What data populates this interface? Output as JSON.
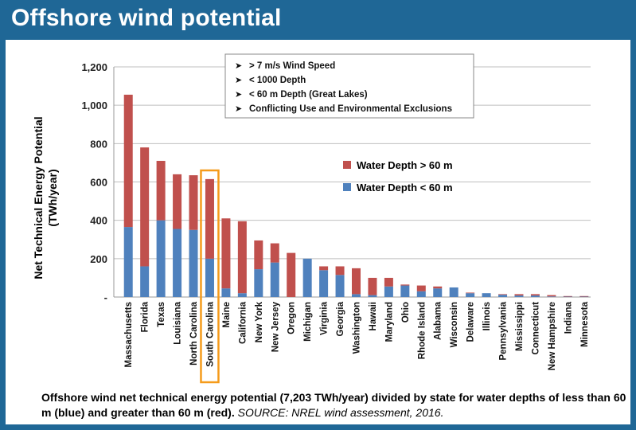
{
  "header": {
    "title": "Offshore wind potential"
  },
  "caption": {
    "text": "Offshore wind net technical energy potential (7,203 TWh/year) divided by state for water depths of less than 60 m (blue) and greater than 60 m (red).",
    "source": "SOURCE: NREL wind assessment, 2016."
  },
  "criteria_box": {
    "items": [
      "> 7 m/s Wind Speed",
      "< 1000 Depth",
      "< 60 m Depth (Great Lakes)",
      "Conflicting Use and Environmental Exclusions"
    ]
  },
  "colors": {
    "deep": "#c0504d",
    "shallow": "#4f81bd",
    "highlight": "#f59b1b"
  },
  "chart_data": {
    "type": "bar",
    "stacked": true,
    "ylabel": "Net Technical Energy Potential (TWh/year)",
    "ylabel_lines": [
      "Net Technical Energy Potential",
      "(TWh/year)"
    ],
    "ylim": [
      0,
      1200
    ],
    "yticks": [
      0,
      200,
      400,
      600,
      800,
      1000,
      1200
    ],
    "ytick_labels": [
      "-",
      "200",
      "400",
      "600",
      "800",
      "1,000",
      "1,200"
    ],
    "grid": true,
    "legend_position": "center-right",
    "highlighted_category": "South Carolina",
    "categories": [
      "Massachusetts",
      "Florida",
      "Texas",
      "Louisiana",
      "North Carolina",
      "South Carolina",
      "Maine",
      "California",
      "New York",
      "New Jersey",
      "Oregon",
      "Michigan",
      "Virginia",
      "Georgia",
      "Washington",
      "Hawaii",
      "Maryland",
      "Ohio",
      "Rhode Island",
      "Alabama",
      "Wisconsin",
      "Delaware",
      "Illinois",
      "Pennsylvania",
      "Mississippi",
      "Connecticut",
      "New Hampshire",
      "Indiana",
      "Minnesota"
    ],
    "series": [
      {
        "name": "Water Depth < 60 m",
        "values": [
          365,
          160,
          400,
          355,
          350,
          200,
          45,
          20,
          145,
          180,
          0,
          200,
          140,
          115,
          15,
          10,
          55,
          60,
          30,
          45,
          50,
          20,
          20,
          12,
          8,
          8,
          3,
          2,
          2
        ]
      },
      {
        "name": "Water Depth > 60 m",
        "values": [
          690,
          620,
          310,
          285,
          285,
          415,
          365,
          375,
          150,
          100,
          230,
          0,
          20,
          45,
          135,
          90,
          45,
          5,
          30,
          10,
          0,
          3,
          0,
          3,
          7,
          7,
          7,
          3,
          3
        ]
      }
    ]
  }
}
